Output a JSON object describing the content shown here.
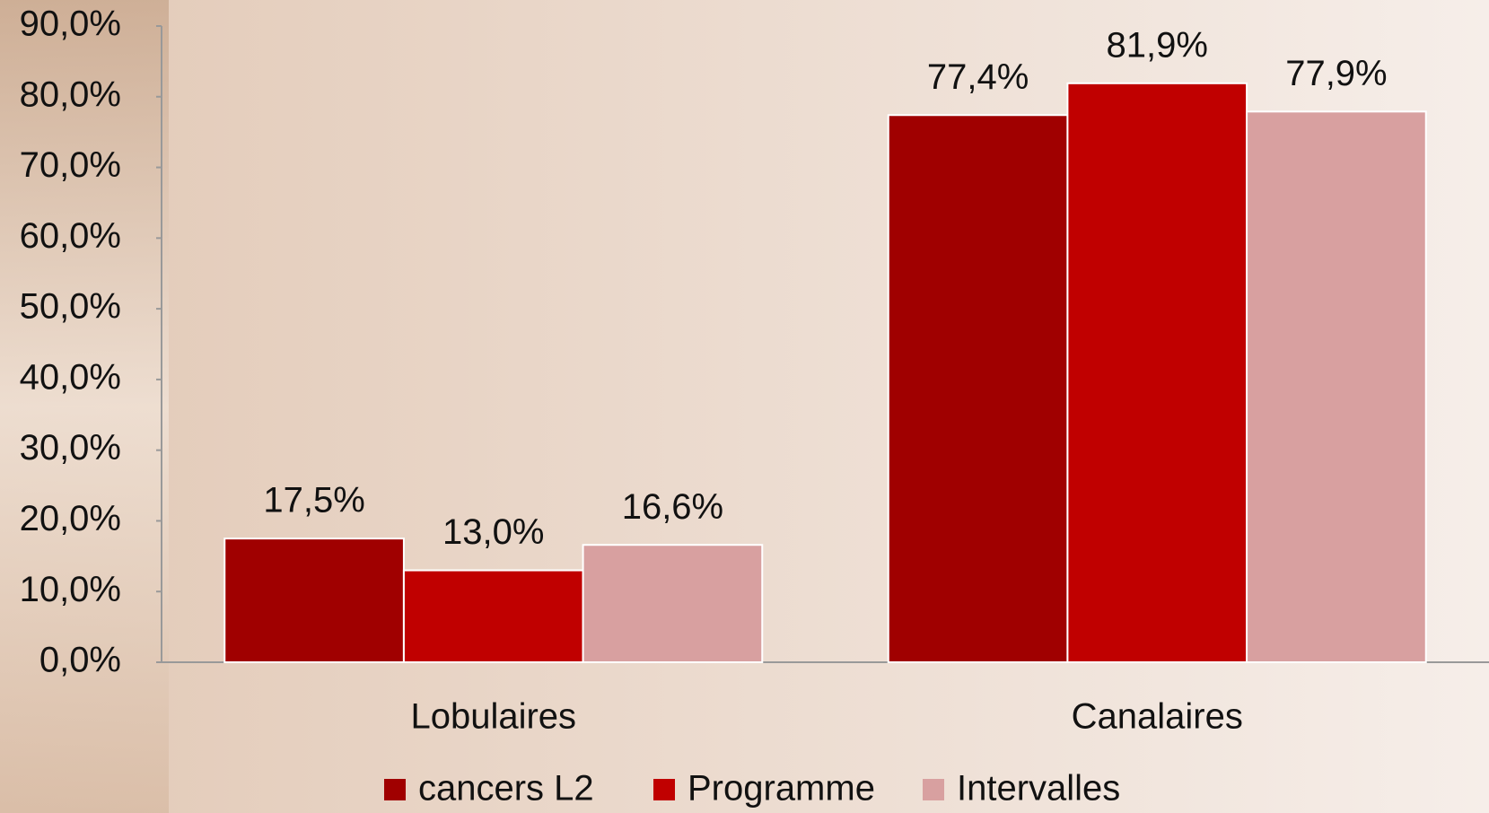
{
  "chart_data": {
    "type": "bar",
    "categories": [
      "Lobulaires",
      "Canalaires"
    ],
    "series": [
      {
        "name": "cancers L2",
        "color": "#a00000",
        "values": [
          17.5,
          77.4
        ],
        "value_labels": [
          "17,5%",
          "77,4%"
        ]
      },
      {
        "name": "Programme",
        "color": "#c00000",
        "values": [
          13.0,
          81.9
        ],
        "value_labels": [
          "13,0%",
          "81,9%"
        ]
      },
      {
        "name": "Intervalles",
        "color": "#d8a0a0",
        "values": [
          16.6,
          77.9
        ],
        "value_labels": [
          "16,6%",
          "77,9%"
        ]
      }
    ],
    "ylim": [
      0,
      90
    ],
    "yticks": [
      {
        "value": 0,
        "label": "0,0%"
      },
      {
        "value": 10,
        "label": "10,0%"
      },
      {
        "value": 20,
        "label": "20,0%"
      },
      {
        "value": 30,
        "label": "30,0%"
      },
      {
        "value": 40,
        "label": "40,0%"
      },
      {
        "value": 50,
        "label": "50,0%"
      },
      {
        "value": 60,
        "label": "60,0%"
      },
      {
        "value": 70,
        "label": "70,0%"
      },
      {
        "value": 80,
        "label": "80,0%"
      },
      {
        "value": 90,
        "label": "90,0%"
      }
    ],
    "grid": false,
    "legend": "bottom"
  }
}
